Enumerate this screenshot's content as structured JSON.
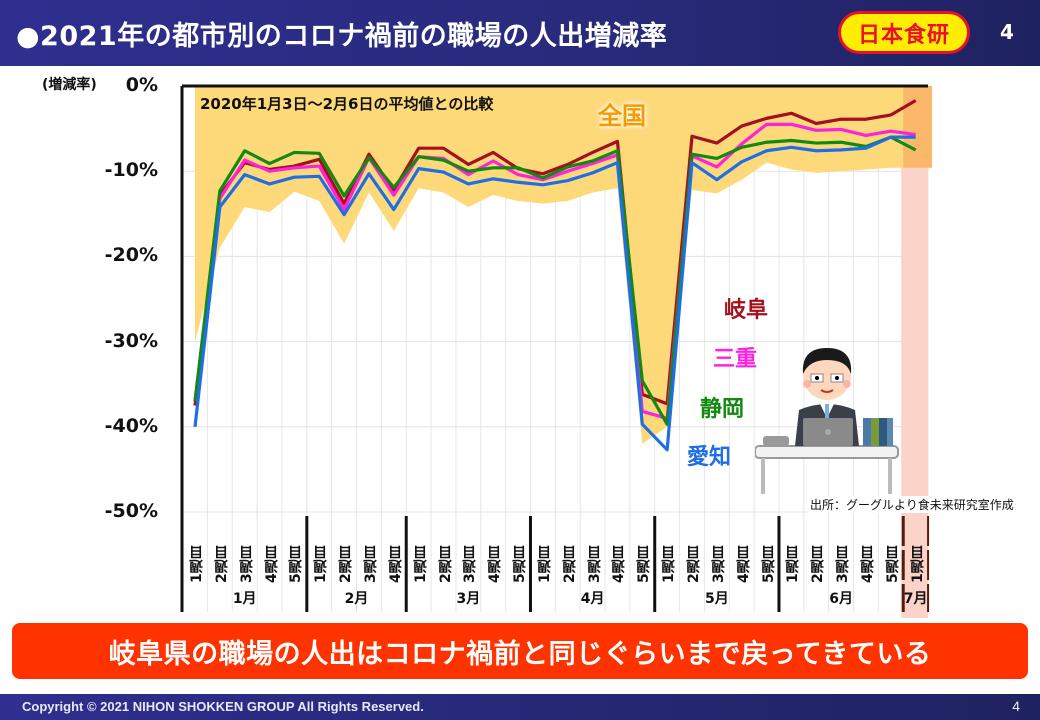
{
  "header": {
    "title": "●2021年の都市別のコロナ禍前の職場の人出増減率",
    "logo_text": "日本食研",
    "page_number": "4"
  },
  "chart_data": {
    "type": "line",
    "title": "2021年の都市別のコロナ禍前の職場の人出増減率",
    "subtitle": "2020年1月3日～2月6日の平均値との比較",
    "ylabel": "(増減率)",
    "ylim": [
      -50,
      0
    ],
    "yticks": [
      "0%",
      "-10%",
      "-20%",
      "-30%",
      "-40%",
      "-50%"
    ],
    "ytick_values": [
      0,
      -10,
      -20,
      -30,
      -40,
      -50
    ],
    "grid": true,
    "months": [
      {
        "label": "1月",
        "weeks": [
          "1週目",
          "2週目",
          "3週目",
          "4週目",
          "5週目"
        ]
      },
      {
        "label": "2月",
        "weeks": [
          "1週目",
          "2週目",
          "3週目",
          "4週目"
        ]
      },
      {
        "label": "3月",
        "weeks": [
          "1週目",
          "2週目",
          "3週目",
          "4週目",
          "5週目"
        ]
      },
      {
        "label": "4月",
        "weeks": [
          "1週目",
          "2週目",
          "3週目",
          "4週目",
          "5週目"
        ]
      },
      {
        "label": "5月",
        "weeks": [
          "1週目",
          "2週目",
          "3週目",
          "4週目",
          "5週目"
        ]
      },
      {
        "label": "6月",
        "weeks": [
          "1週目",
          "2週目",
          "3週目",
          "4週目",
          "5週目"
        ]
      },
      {
        "label": "7月",
        "weeks": [
          "1週目"
        ]
      }
    ],
    "area": {
      "name": "全国",
      "color": "#fdd97a",
      "upper": [
        0,
        0,
        0,
        0,
        0,
        0,
        0,
        0,
        0,
        0,
        0,
        0,
        0,
        0,
        0,
        0,
        0,
        0,
        0,
        0,
        0,
        0,
        0,
        0,
        0,
        0,
        0,
        0,
        0,
        0
      ],
      "lower": [
        -30,
        -19,
        -14.2,
        -14.8,
        -12.4,
        -13.5,
        -18.5,
        -12.5,
        -17.0,
        -12.0,
        -12.5,
        -14.2,
        -12.8,
        -13.5,
        -13.8,
        -13.5,
        -12.5,
        -12.0,
        -42,
        -40,
        -12.2,
        -12.6,
        -11,
        -9,
        -9.8,
        -10.2,
        -10.0,
        -9.8,
        -9.6,
        -9.6
      ]
    },
    "series": [
      {
        "name": "岐阜",
        "color": "#a3101f",
        "values": [
          -37.5,
          -12.8,
          -9.0,
          -9.8,
          -9.4,
          -8.6,
          -13.8,
          -8.0,
          -12.2,
          -7.3,
          -7.3,
          -9.2,
          -7.8,
          -9.7,
          -10.3,
          -9.2,
          -7.8,
          -6.5,
          -36.2,
          -37.3,
          -5.9,
          -6.7,
          -4.7,
          -3.8,
          -3.2,
          -4.4,
          -3.9,
          -3.9,
          -3.4,
          -1.7
        ]
      },
      {
        "name": "三重",
        "color": "#ff22dd",
        "values": [
          -37.0,
          -13.2,
          -8.7,
          -10.0,
          -9.6,
          -9.4,
          -14.5,
          -8.4,
          -12.8,
          -8.3,
          -8.5,
          -10.4,
          -8.8,
          -10.4,
          -11.0,
          -10.0,
          -9.1,
          -8.1,
          -38.2,
          -39.0,
          -8.2,
          -9.5,
          -6.8,
          -4.5,
          -4.5,
          -5.2,
          -5.1,
          -5.8,
          -5.3,
          -5.7
        ]
      },
      {
        "name": "静岡",
        "color": "#128a12",
        "values": [
          -37.0,
          -12.3,
          -7.6,
          -9.1,
          -7.8,
          -7.9,
          -12.9,
          -8.4,
          -11.9,
          -8.3,
          -8.7,
          -10.0,
          -9.6,
          -9.6,
          -10.8,
          -9.5,
          -8.8,
          -7.6,
          -34.6,
          -39.7,
          -8.0,
          -8.5,
          -7.2,
          -6.6,
          -6.4,
          -6.7,
          -6.6,
          -7.1,
          -6.0,
          -7.5
        ]
      },
      {
        "name": "愛知",
        "color": "#1f6ee6",
        "values": [
          -40.0,
          -14.2,
          -10.4,
          -11.5,
          -10.7,
          -10.6,
          -15.1,
          -10.3,
          -14.5,
          -9.7,
          -10.1,
          -11.5,
          -10.9,
          -11.3,
          -11.6,
          -11.1,
          -10.2,
          -9.0,
          -39.7,
          -42.7,
          -9.0,
          -11.0,
          -8.9,
          -7.6,
          -7.2,
          -7.6,
          -7.5,
          -7.3,
          -6.0,
          -6.0
        ]
      }
    ],
    "legend": [
      {
        "name": "全国",
        "color": "#f59b00",
        "placement": "top-center"
      },
      {
        "name": "岐阜",
        "color": "#a3101f"
      },
      {
        "name": "三重",
        "color": "#ff22dd"
      },
      {
        "name": "静岡",
        "color": "#128a12"
      },
      {
        "name": "愛知",
        "color": "#1f6ee6"
      }
    ],
    "highlight_label": "7月",
    "annotation_source": "出所：グーグルより食未来研究室作成"
  },
  "banner": {
    "text": "岐阜県の職場の人出はコロナ禍前と同じぐらいまで戻ってきている"
  },
  "footer": {
    "copyright": "Copyright © 2021 NIHON SHOKKEN GROUP All Rights Reserved.",
    "page_number": "4"
  }
}
